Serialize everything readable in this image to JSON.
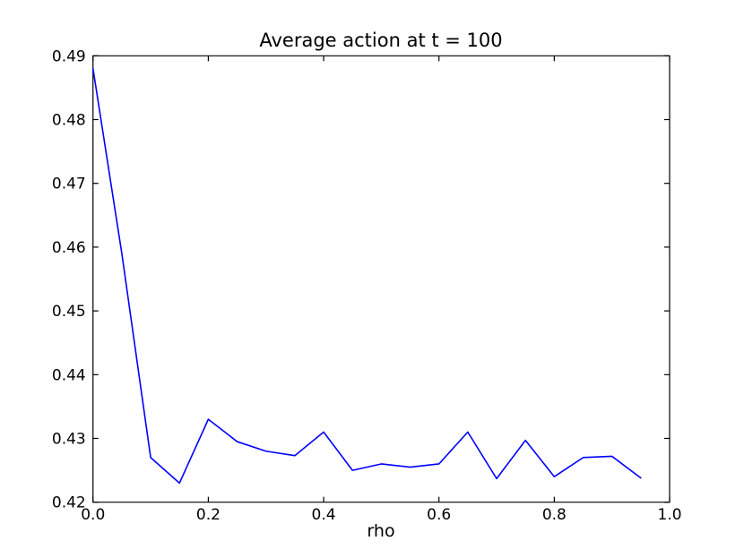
{
  "figure": {
    "background_color": "#ffffff"
  },
  "chart_data": {
    "type": "line",
    "title": "Average action at t = 100",
    "xlabel": "rho",
    "ylabel": "",
    "x": [
      0.0,
      0.05,
      0.1,
      0.15,
      0.2,
      0.25,
      0.3,
      0.35,
      0.4,
      0.45,
      0.5,
      0.55,
      0.6,
      0.65,
      0.7,
      0.75,
      0.8,
      0.85,
      0.9,
      0.95
    ],
    "y": [
      0.488,
      0.459,
      0.427,
      0.423,
      0.433,
      0.4295,
      0.428,
      0.4273,
      0.431,
      0.425,
      0.426,
      0.4255,
      0.426,
      0.431,
      0.4237,
      0.4297,
      0.424,
      0.427,
      0.4272,
      0.4238
    ],
    "xlim": [
      0.0,
      1.0
    ],
    "ylim": [
      0.42,
      0.49
    ],
    "xticks": [
      0.0,
      0.2,
      0.4,
      0.6,
      0.8,
      1.0
    ],
    "xtick_labels": [
      "0.0",
      "0.2",
      "0.4",
      "0.6",
      "0.8",
      "1.0"
    ],
    "yticks": [
      0.42,
      0.43,
      0.44,
      0.45,
      0.46,
      0.47,
      0.48,
      0.49
    ],
    "ytick_labels": [
      "0.42",
      "0.43",
      "0.44",
      "0.45",
      "0.46",
      "0.47",
      "0.48",
      "0.49"
    ],
    "line_color": "#0000ff",
    "axis_color": "#000000",
    "tick_direction": "in",
    "grid": false,
    "legend": null
  }
}
